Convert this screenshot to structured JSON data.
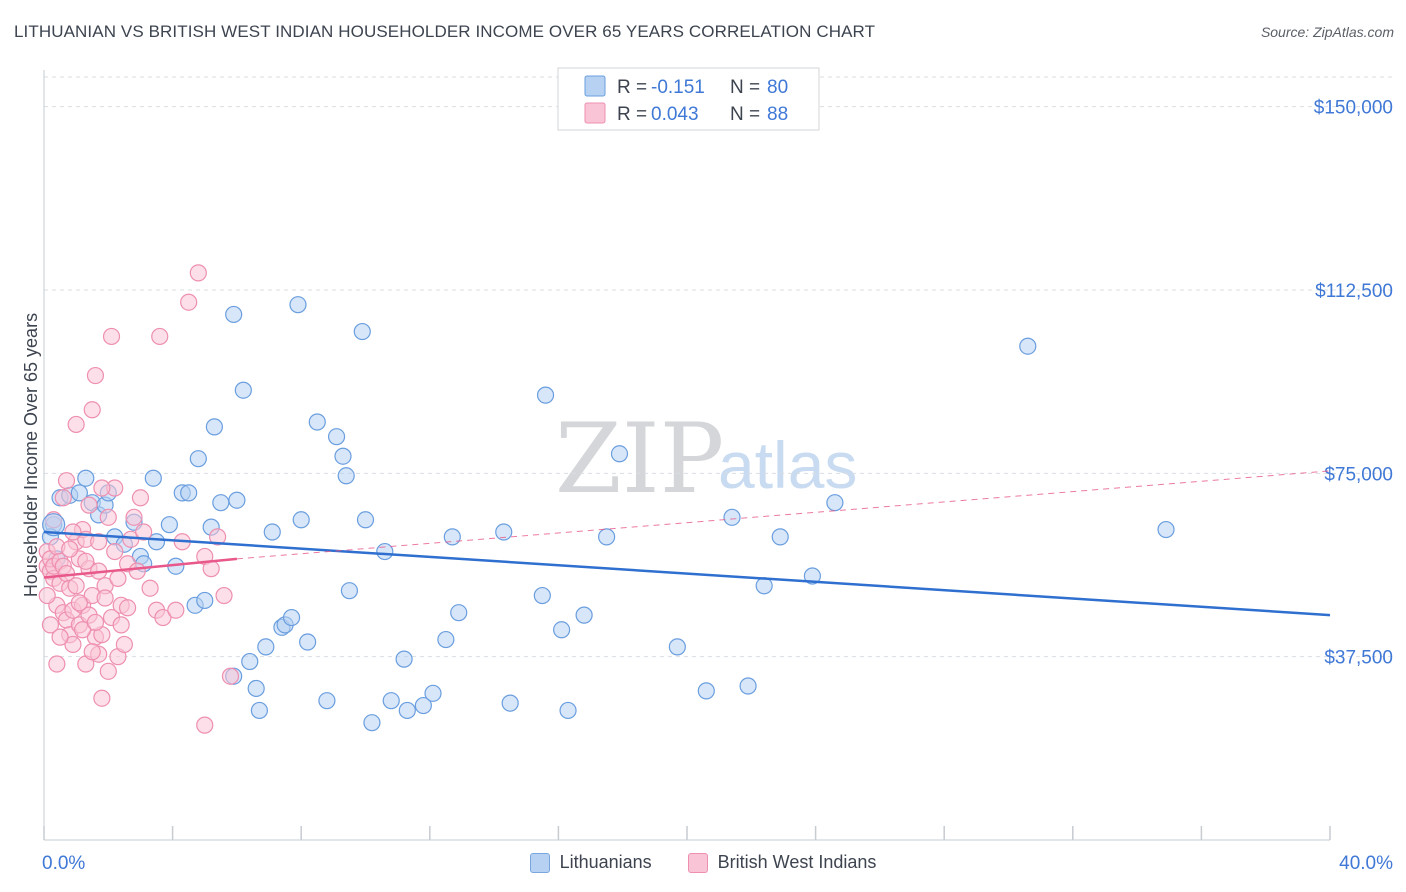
{
  "header": {
    "title": "LITHUANIAN VS BRITISH WEST INDIAN HOUSEHOLDER INCOME OVER 65 YEARS CORRELATION CHART",
    "source": "Source: ZipAtlas.com"
  },
  "colors": {
    "blue": "#6a9edf",
    "blue_fill": "#b6d1f2",
    "blue_line": "#2e6fcf",
    "pink": "#ee8fb0",
    "pink_fill": "#f9c5d6",
    "pink_line": "#e8588a",
    "axis_text": "#3f78d6"
  },
  "chart_data": {
    "type": "scatter",
    "title": "LITHUANIAN VS BRITISH WEST INDIAN HOUSEHOLDER INCOME OVER 65 YEARS CORRELATION CHART",
    "xlabel": "",
    "ylabel": "Householder Income Over 65 years",
    "x_range": [
      0,
      40
    ],
    "y_range": [
      0,
      157500
    ],
    "x_tick_labels": [
      "0.0%",
      "40.0%"
    ],
    "y_ticks": [
      37500,
      75000,
      112500,
      150000
    ],
    "y_tick_labels": [
      "$37,500",
      "$75,000",
      "$112,500",
      "$150,000"
    ],
    "watermark": {
      "zip": "ZIP",
      "atlas": "atlas"
    },
    "legend_stats": [
      {
        "r_label": "R =",
        "r_value": "-0.151",
        "n_label": "N =",
        "n_value": "80"
      },
      {
        "r_label": "R =",
        "r_value": "0.043",
        "n_label": "N =",
        "n_value": "88"
      }
    ],
    "series": [
      {
        "name": "Lithuanians",
        "trend": {
          "x0": 0,
          "y0": 63000,
          "x1": 40,
          "y1": 46000
        },
        "points": [
          [
            0.3,
            64500
          ],
          [
            0.5,
            70000
          ],
          [
            0.8,
            70500
          ],
          [
            1.1,
            71000
          ],
          [
            1.3,
            74000
          ],
          [
            1.5,
            69000
          ],
          [
            1.7,
            66500
          ],
          [
            1.9,
            68500
          ],
          [
            2.2,
            62000
          ],
          [
            2.5,
            60500
          ],
          [
            2.8,
            65000
          ],
          [
            3.0,
            58000
          ],
          [
            3.4,
            74000
          ],
          [
            3.5,
            61000
          ],
          [
            3.9,
            64500
          ],
          [
            4.1,
            56000
          ],
          [
            4.3,
            71000
          ],
          [
            4.5,
            71000
          ],
          [
            4.7,
            48000
          ],
          [
            4.8,
            78000
          ],
          [
            5.0,
            49000
          ],
          [
            5.2,
            64000
          ],
          [
            5.3,
            84500
          ],
          [
            5.5,
            69000
          ],
          [
            5.9,
            33500
          ],
          [
            5.9,
            107500
          ],
          [
            6.0,
            69500
          ],
          [
            6.2,
            92000
          ],
          [
            6.4,
            36500
          ],
          [
            6.6,
            31000
          ],
          [
            6.7,
            26500
          ],
          [
            6.9,
            39500
          ],
          [
            7.1,
            63000
          ],
          [
            7.4,
            43500
          ],
          [
            7.5,
            44000
          ],
          [
            7.7,
            45500
          ],
          [
            7.9,
            109500
          ],
          [
            8.0,
            65500
          ],
          [
            8.2,
            40500
          ],
          [
            8.5,
            85500
          ],
          [
            8.8,
            28500
          ],
          [
            9.1,
            82500
          ],
          [
            9.3,
            78500
          ],
          [
            9.4,
            74500
          ],
          [
            9.5,
            51000
          ],
          [
            9.9,
            104000
          ],
          [
            10.0,
            65500
          ],
          [
            10.2,
            24000
          ],
          [
            10.6,
            59000
          ],
          [
            10.8,
            28500
          ],
          [
            11.2,
            37000
          ],
          [
            11.3,
            26500
          ],
          [
            11.8,
            27500
          ],
          [
            12.1,
            30000
          ],
          [
            12.5,
            41000
          ],
          [
            12.7,
            62000
          ],
          [
            12.9,
            46500
          ],
          [
            14.3,
            63000
          ],
          [
            14.5,
            28000
          ],
          [
            15.5,
            50000
          ],
          [
            15.6,
            91000
          ],
          [
            16.1,
            43000
          ],
          [
            16.3,
            26500
          ],
          [
            16.8,
            46000
          ],
          [
            17.5,
            62000
          ],
          [
            17.9,
            79000
          ],
          [
            19.7,
            39500
          ],
          [
            20.6,
            30500
          ],
          [
            21.4,
            66000
          ],
          [
            21.9,
            31500
          ],
          [
            22.4,
            52000
          ],
          [
            22.9,
            62000
          ],
          [
            23.9,
            54000
          ],
          [
            24.6,
            69000
          ],
          [
            30.6,
            101000
          ],
          [
            34.9,
            63500
          ],
          [
            0.2,
            62000
          ],
          [
            0.4,
            57500
          ],
          [
            2.0,
            71000
          ],
          [
            3.1,
            56500
          ]
        ]
      },
      {
        "name": "British West Indians",
        "trend": {
          "x0": 0,
          "y0": 53700,
          "x1": 6,
          "y1": 57500,
          "x2": 40,
          "y2": 75500
        },
        "points": [
          [
            0.1,
            56000
          ],
          [
            0.1,
            59000
          ],
          [
            0.2,
            55000
          ],
          [
            0.2,
            57500
          ],
          [
            0.3,
            53500
          ],
          [
            0.3,
            56000
          ],
          [
            0.4,
            60000
          ],
          [
            0.4,
            48000
          ],
          [
            0.5,
            52500
          ],
          [
            0.5,
            57000
          ],
          [
            0.6,
            46500
          ],
          [
            0.6,
            56000
          ],
          [
            0.7,
            54500
          ],
          [
            0.7,
            45000
          ],
          [
            0.8,
            51500
          ],
          [
            0.8,
            42000
          ],
          [
            0.9,
            47000
          ],
          [
            0.9,
            40000
          ],
          [
            1.0,
            61000
          ],
          [
            1.0,
            85000
          ],
          [
            1.1,
            44000
          ],
          [
            1.1,
            57500
          ],
          [
            1.2,
            63500
          ],
          [
            1.2,
            48000
          ],
          [
            1.3,
            36000
          ],
          [
            1.3,
            61500
          ],
          [
            1.4,
            55500
          ],
          [
            1.4,
            46000
          ],
          [
            1.5,
            50000
          ],
          [
            1.5,
            88000
          ],
          [
            1.6,
            95000
          ],
          [
            1.6,
            41500
          ],
          [
            1.7,
            38000
          ],
          [
            1.7,
            55000
          ],
          [
            1.8,
            29000
          ],
          [
            1.8,
            42000
          ],
          [
            1.9,
            52000
          ],
          [
            2.0,
            66000
          ],
          [
            2.1,
            45500
          ],
          [
            2.1,
            103000
          ],
          [
            2.2,
            72000
          ],
          [
            2.3,
            53500
          ],
          [
            2.3,
            37500
          ],
          [
            2.4,
            48000
          ],
          [
            2.5,
            40000
          ],
          [
            2.6,
            56500
          ],
          [
            2.7,
            61500
          ],
          [
            2.8,
            66000
          ],
          [
            3.0,
            70000
          ],
          [
            3.1,
            63000
          ],
          [
            3.3,
            51500
          ],
          [
            3.5,
            47000
          ],
          [
            3.6,
            103000
          ],
          [
            3.7,
            45500
          ],
          [
            4.1,
            47000
          ],
          [
            4.3,
            61000
          ],
          [
            4.5,
            110000
          ],
          [
            4.8,
            116000
          ],
          [
            5.0,
            58000
          ],
          [
            5.2,
            55500
          ],
          [
            5.4,
            62000
          ],
          [
            5.6,
            50000
          ],
          [
            5.8,
            33500
          ],
          [
            5.0,
            23500
          ],
          [
            0.1,
            50000
          ],
          [
            0.2,
            44000
          ],
          [
            0.3,
            65500
          ],
          [
            0.4,
            36000
          ],
          [
            0.5,
            41500
          ],
          [
            0.6,
            70000
          ],
          [
            0.7,
            73500
          ],
          [
            0.8,
            59500
          ],
          [
            0.9,
            63000
          ],
          [
            1.0,
            52000
          ],
          [
            1.1,
            48500
          ],
          [
            1.2,
            43000
          ],
          [
            1.3,
            57000
          ],
          [
            1.4,
            68500
          ],
          [
            1.5,
            38500
          ],
          [
            1.6,
            44500
          ],
          [
            1.7,
            61000
          ],
          [
            1.8,
            72000
          ],
          [
            1.9,
            49500
          ],
          [
            2.0,
            34500
          ],
          [
            2.2,
            59000
          ],
          [
            2.4,
            44000
          ],
          [
            2.6,
            47500
          ],
          [
            2.9,
            55000
          ]
        ]
      }
    ]
  }
}
